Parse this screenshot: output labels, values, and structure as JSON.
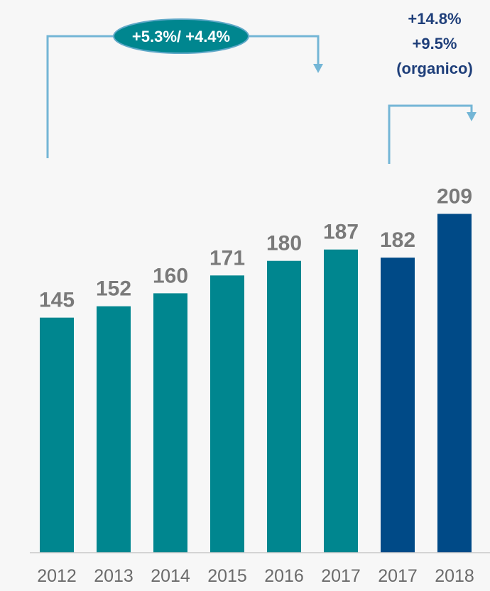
{
  "chart_data": {
    "type": "bar",
    "categories": [
      "2012",
      "2013",
      "2014",
      "2015",
      "2016",
      "2017",
      "2017",
      "2018"
    ],
    "values": [
      145,
      152,
      160,
      171,
      180,
      187,
      182,
      209
    ],
    "ylim": [
      0,
      209
    ],
    "grid": false,
    "legend": "none",
    "annotations": {
      "cagr_badge": "+5.3%/ +4.4%",
      "growth_lines": [
        "+14.8%",
        "+9.5%",
        "(organico)"
      ]
    }
  },
  "colors": {
    "background": "#f7f7f7",
    "teal_bar": "#00868f",
    "navy_bar": "#004a87",
    "label_gray": "#7a7a7a",
    "tick_gray": "#6b6b6b",
    "arrow_blue": "#74b6d6",
    "badge_fill": "#00868f",
    "badge_stroke": "#5fa8c8",
    "annotation_text": "#1f3f7a",
    "axis_line": "#c8c8c8"
  },
  "bar_colors": [
    "teal_bar",
    "teal_bar",
    "teal_bar",
    "teal_bar",
    "teal_bar",
    "teal_bar",
    "navy_bar",
    "navy_bar"
  ]
}
